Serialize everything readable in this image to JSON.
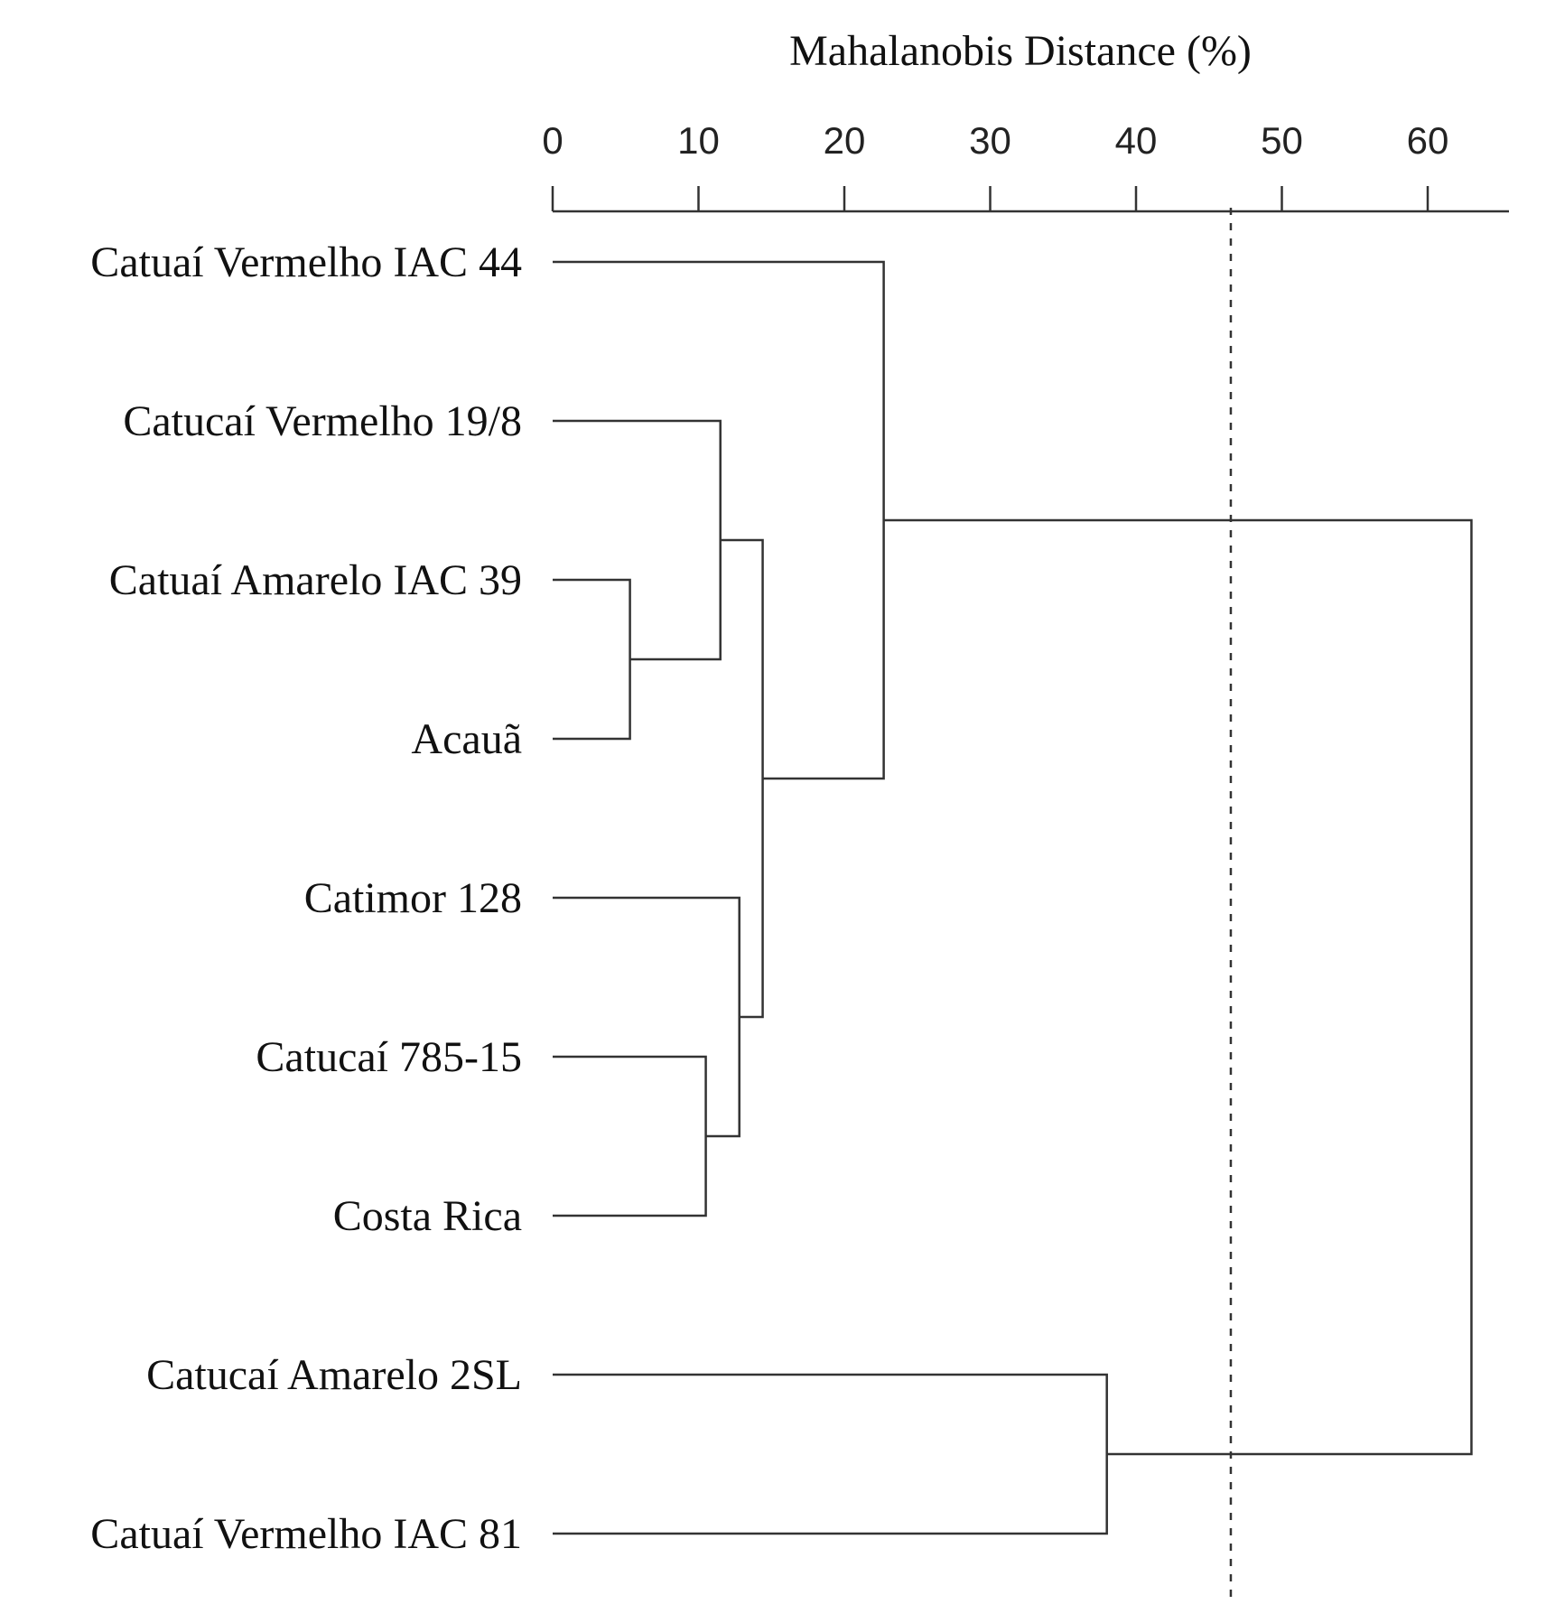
{
  "chart_data": {
    "type": "dendrogram",
    "title": "Mahalanobis Distance (%)",
    "xlabel": "Mahalanobis Distance (%)",
    "ylabel": "",
    "xlim": [
      0,
      65.5
    ],
    "xticks": [
      "0",
      "10",
      "20",
      "30",
      "40",
      "50",
      "60"
    ],
    "tick_values": [
      0,
      10,
      20,
      30,
      40,
      50,
      60
    ],
    "cutoff": 46.5,
    "leaves": [
      "Catuaí Vermelho IAC 44",
      "Catucaí Vermelho 19/8",
      "Catuaí Amarelo IAC 39",
      "Acauã",
      "Catimor 128",
      "Catucaí 785-15",
      "Costa Rica",
      "Catucaí Amarelo 2SL",
      "Catuaí Vermelho IAC 81"
    ],
    "merges": [
      {
        "id": "n1",
        "children": [
          "Catuaí Amarelo IAC 39",
          "Acauã"
        ],
        "height": 5.3
      },
      {
        "id": "n2",
        "children": [
          "Catucaí Vermelho 19/8",
          "n1"
        ],
        "height": 11.5
      },
      {
        "id": "n3",
        "children": [
          "Catucaí 785-15",
          "Costa Rica"
        ],
        "height": 10.5
      },
      {
        "id": "n4",
        "children": [
          "Catimor 128",
          "n3"
        ],
        "height": 12.8
      },
      {
        "id": "n5",
        "children": [
          "n2",
          "n4"
        ],
        "height": 14.4
      },
      {
        "id": "n6",
        "children": [
          "Catuaí Vermelho IAC 44",
          "n5"
        ],
        "height": 22.7
      },
      {
        "id": "n7",
        "children": [
          "Catucaí Amarelo 2SL",
          "Catuaí Vermelho IAC 81"
        ],
        "height": 38.0
      },
      {
        "id": "n8",
        "children": [
          "n6",
          "n7"
        ],
        "height": 63.0
      }
    ]
  }
}
